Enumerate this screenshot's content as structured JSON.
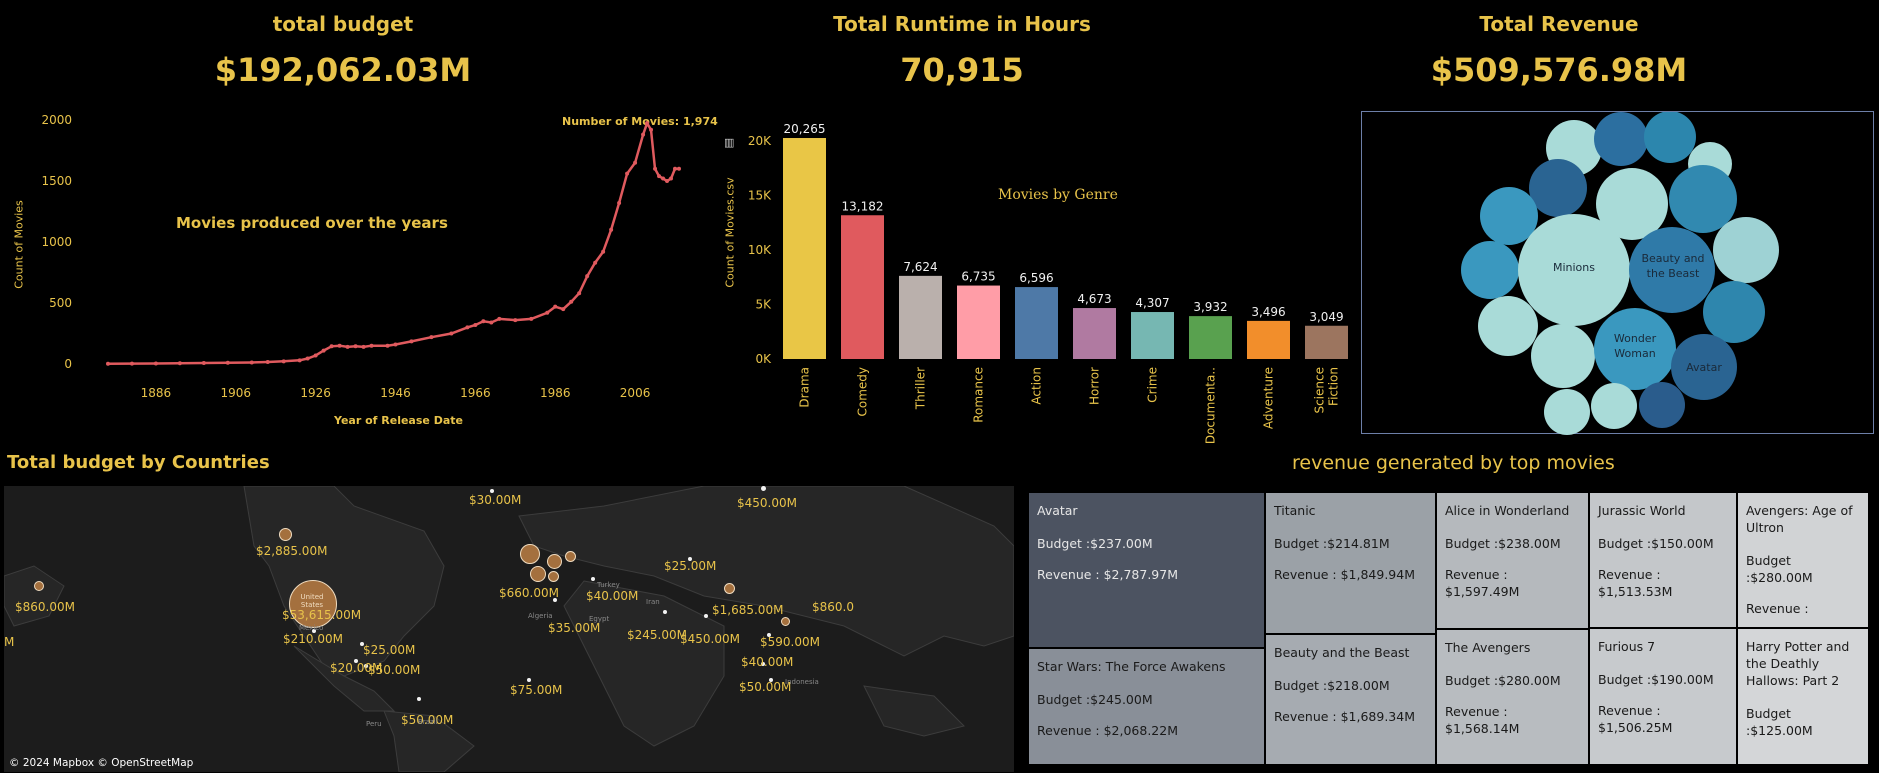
{
  "kpis": {
    "budget": {
      "title": "total budget",
      "value": "$192,062.03M"
    },
    "runtime": {
      "title": "Total Runtime in Hours",
      "value": "70,915"
    },
    "revenue": {
      "title": "Total Revenue",
      "value": "$509,576.98M"
    }
  },
  "line_chart": {
    "title": "Movies produced over the years",
    "ylabel": "Count of Movies",
    "xlabel": "Year of Release Date",
    "yticks": [
      "2000",
      "1500",
      "1000",
      "500",
      "0"
    ],
    "xticks": [
      "1886",
      "1906",
      "1926",
      "1946",
      "1966",
      "1986",
      "2006"
    ],
    "annotation_label": "Number of Movies:",
    "annotation_value": "1,974"
  },
  "bar_chart": {
    "title": "Movies by Genre",
    "ylabel": "Count of Movies.csv",
    "yticks": [
      "20K",
      "15K",
      "10K",
      "5K",
      "0K"
    ],
    "value_labels": [
      "20,265",
      "13,182",
      "7,624",
      "6,735",
      "6,596",
      "4,673",
      "4,307",
      "3,932",
      "3,496",
      "3,049"
    ],
    "category_labels": [
      "Drama",
      "Comedy",
      "Thriller",
      "Romance",
      "Action",
      "Horror",
      "Crime",
      "Documenta..",
      "Adventure",
      "Science Fiction"
    ]
  },
  "bubble_labels": [
    "Minions",
    "Beauty and the Beast",
    "Wonder Woman",
    "Avatar"
  ],
  "map": {
    "title": "Total budget by Countries",
    "attribution": "© 2024 Mapbox © OpenStreetMap",
    "country_label": "United States",
    "labels": [
      "$30.00M",
      "$450.00M",
      "$2,885.00M",
      "$25.00M",
      "$860.00M",
      "$660.00M",
      "$40.00M",
      "$1,685.00M",
      "$860.0",
      "$53,615.00M",
      "$35.00M",
      "$210.00M",
      "$245.00M",
      "$450.00M",
      "$590.00M",
      "$25.00M",
      "$40.00M",
      "$20.00M",
      "$50.00M",
      "$75.00M",
      "$50.00M",
      "$50.00M",
      "M"
    ],
    "place_labels": [
      "Mexico",
      "Algeria",
      "Egypt",
      "Turkey",
      "Iran",
      "Peru",
      "Brazil",
      "Indonesia"
    ]
  },
  "treemap": {
    "title": "revenue generated by top movies",
    "cells": [
      {
        "title": "Avatar",
        "budget": "Budget :$237.00M",
        "revenue": "Revenue : $2,787.97M"
      },
      {
        "title": "Star Wars: The Force Awakens",
        "budget": "Budget :$245.00M",
        "revenue": "Revenue : $2,068.22M"
      },
      {
        "title": "Titanic",
        "budget": "Budget :$214.81M",
        "revenue": "Revenue : $1,849.94M"
      },
      {
        "title": "Beauty and the Beast",
        "budget": "Budget :$218.00M",
        "revenue": "Revenue : $1,689.34M"
      },
      {
        "title": "Alice in Wonderland",
        "budget": "Budget :$238.00M",
        "revenue": "Revenue : $1,597.49M"
      },
      {
        "title": "The Avengers",
        "budget": "Budget :$280.00M",
        "revenue": "Revenue : $1,568.14M"
      },
      {
        "title": "Jurassic World",
        "budget": "Budget :$150.00M",
        "revenue": "Revenue : $1,513.53M"
      },
      {
        "title": "Furious 7",
        "budget": "Budget :$190.00M",
        "revenue": "Revenue : $1,506.25M"
      },
      {
        "title": "Avengers: Age of Ultron",
        "budget": "Budget :$280.00M",
        "revenue": "Revenue :"
      },
      {
        "title": "Harry Potter and the Deathly Hallows: Part 2",
        "budget": "Budget :$125.00M",
        "revenue": ""
      }
    ]
  },
  "chart_data": [
    {
      "type": "line",
      "title": "Movies produced over the years",
      "xlabel": "Year of Release Date",
      "ylabel": "Count of Movies",
      "ylim": [
        0,
        2000
      ],
      "x": [
        1874,
        1880,
        1886,
        1892,
        1898,
        1904,
        1910,
        1914,
        1918,
        1922,
        1924,
        1926,
        1928,
        1930,
        1932,
        1934,
        1936,
        1938,
        1940,
        1944,
        1946,
        1950,
        1955,
        1960,
        1964,
        1966,
        1968,
        1970,
        1972,
        1976,
        1980,
        1984,
        1986,
        1988,
        1990,
        1992,
        1994,
        1996,
        1998,
        2000,
        2002,
        2004,
        2006,
        2008,
        2009,
        2010,
        2011,
        2012,
        2013,
        2014,
        2015,
        2016,
        2017
      ],
      "y": [
        2,
        3,
        4,
        6,
        8,
        10,
        12,
        16,
        22,
        30,
        45,
        70,
        110,
        145,
        150,
        140,
        145,
        140,
        150,
        150,
        160,
        185,
        220,
        250,
        300,
        320,
        350,
        340,
        370,
        360,
        370,
        420,
        470,
        450,
        510,
        580,
        720,
        830,
        920,
        1100,
        1320,
        1560,
        1650,
        1880,
        1974,
        1920,
        1600,
        1540,
        1520,
        1500,
        1520,
        1600,
        1600
      ]
    },
    {
      "type": "bar",
      "title": "Movies by Genre",
      "ylabel": "Count of Movies.csv",
      "categories": [
        "Drama",
        "Comedy",
        "Thriller",
        "Romance",
        "Action",
        "Horror",
        "Crime",
        "Documenta..",
        "Adventure",
        "Science Fiction"
      ],
      "values": [
        20265,
        13182,
        7624,
        6735,
        6596,
        4673,
        4307,
        3932,
        3496,
        3049
      ],
      "colors": [
        "#e9c646",
        "#e05a5e",
        "#bab0ac",
        "#ff9da7",
        "#4e79a7",
        "#b07aa1",
        "#76b7b2",
        "#59a14f",
        "#f28e2b",
        "#9c755f"
      ],
      "ylim": [
        0,
        21000
      ]
    }
  ]
}
